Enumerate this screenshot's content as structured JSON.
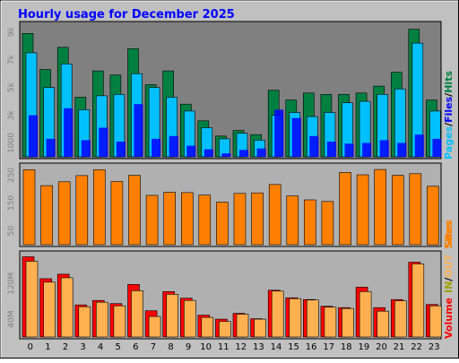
{
  "title": "Hourly usage for December 2025",
  "colors": {
    "background": "#c0c0c0",
    "title": "#0000ff",
    "panel_hits": "#808080",
    "panel_sites": "#b0b0b0",
    "hits": "#008040",
    "files": "#00c0ff",
    "pages": "#0000ff",
    "sites": "#ff8000",
    "vol_in": "#ff0000",
    "vol_out": "#ffb050",
    "tick": "#808080"
  },
  "chart_data": [
    {
      "type": "bar",
      "panel": "hits",
      "categories": [
        "0",
        "1",
        "2",
        "3",
        "4",
        "5",
        "6",
        "7",
        "8",
        "9",
        "10",
        "11",
        "12",
        "13",
        "14",
        "15",
        "16",
        "17",
        "18",
        "19",
        "20",
        "21",
        "22",
        "23"
      ],
      "series": [
        {
          "name": "Hits",
          "values": [
            8900,
            6300,
            7900,
            4300,
            6200,
            5900,
            7800,
            5200,
            6200,
            3800,
            2600,
            1500,
            1900,
            1600,
            4800,
            4100,
            4600,
            4500,
            4500,
            4600,
            5100,
            6100,
            9200,
            4100
          ]
        },
        {
          "name": "Files",
          "values": [
            7500,
            5000,
            6700,
            3400,
            4400,
            4500,
            6000,
            5000,
            4300,
            3300,
            2100,
            1300,
            1700,
            1200,
            3000,
            3200,
            2900,
            3200,
            3900,
            4000,
            4500,
            4900,
            8200,
            3300
          ]
        },
        {
          "name": "Pages",
          "values": [
            3000,
            1300,
            3500,
            1200,
            2100,
            1100,
            3800,
            1300,
            1500,
            800,
            550,
            250,
            500,
            600,
            3400,
            2800,
            1500,
            1100,
            950,
            1000,
            1200,
            1000,
            1600,
            1300
          ]
        }
      ],
      "legend": [
        "Pages",
        "/",
        "Files",
        "/",
        "Hits"
      ],
      "yticks": [
        "1000",
        "3k",
        "5k",
        "7k",
        "9k"
      ],
      "ylim": [
        0,
        9500
      ]
    },
    {
      "type": "bar",
      "panel": "sites",
      "categories": [
        "0",
        "1",
        "2",
        "3",
        "4",
        "5",
        "6",
        "7",
        "8",
        "9",
        "10",
        "11",
        "12",
        "13",
        "14",
        "15",
        "16",
        "17",
        "18",
        "19",
        "20",
        "21",
        "22",
        "23"
      ],
      "series": [
        {
          "name": "Sites",
          "values": [
            269,
            212,
            226,
            248,
            269,
            227,
            249,
            177,
            188,
            187,
            178,
            153,
            184,
            186,
            216,
            175,
            161,
            155,
            259,
            251,
            270,
            249,
            255,
            210
          ]
        }
      ],
      "legend": [
        "Sites"
      ],
      "yticks": [
        "50",
        "150",
        "250"
      ],
      "ylim": [
        0,
        280
      ]
    },
    {
      "type": "bar",
      "panel": "volume",
      "categories": [
        "0",
        "1",
        "2",
        "3",
        "4",
        "5",
        "6",
        "7",
        "8",
        "9",
        "10",
        "11",
        "12",
        "13",
        "14",
        "15",
        "16",
        "17",
        "18",
        "19",
        "20",
        "21",
        "22",
        "23"
      ],
      "series": [
        {
          "name": "IN",
          "values": [
            180000000,
            131000000,
            141000000,
            72000000,
            82000000,
            75000000,
            118000000,
            59000000,
            102000000,
            87000000,
            49000000,
            40000000,
            53000000,
            41000000,
            105000000,
            88000000,
            84000000,
            69000000,
            66000000,
            112000000,
            66000000,
            84000000,
            168000000,
            73000000
          ]
        },
        {
          "name": "OUT",
          "values": [
            170000000,
            123000000,
            133000000,
            68000000,
            78000000,
            70000000,
            104000000,
            46000000,
            96000000,
            82000000,
            44000000,
            35000000,
            51000000,
            40000000,
            103000000,
            86000000,
            83000000,
            67000000,
            64000000,
            102000000,
            58000000,
            81000000,
            164000000,
            70000000
          ]
        }
      ],
      "legend": [
        "Volume",
        "IN",
        "/",
        "OUT",
        "Sites"
      ],
      "yticks": [
        "40M",
        "120M"
      ],
      "ylim": [
        0,
        185000000
      ]
    }
  ]
}
